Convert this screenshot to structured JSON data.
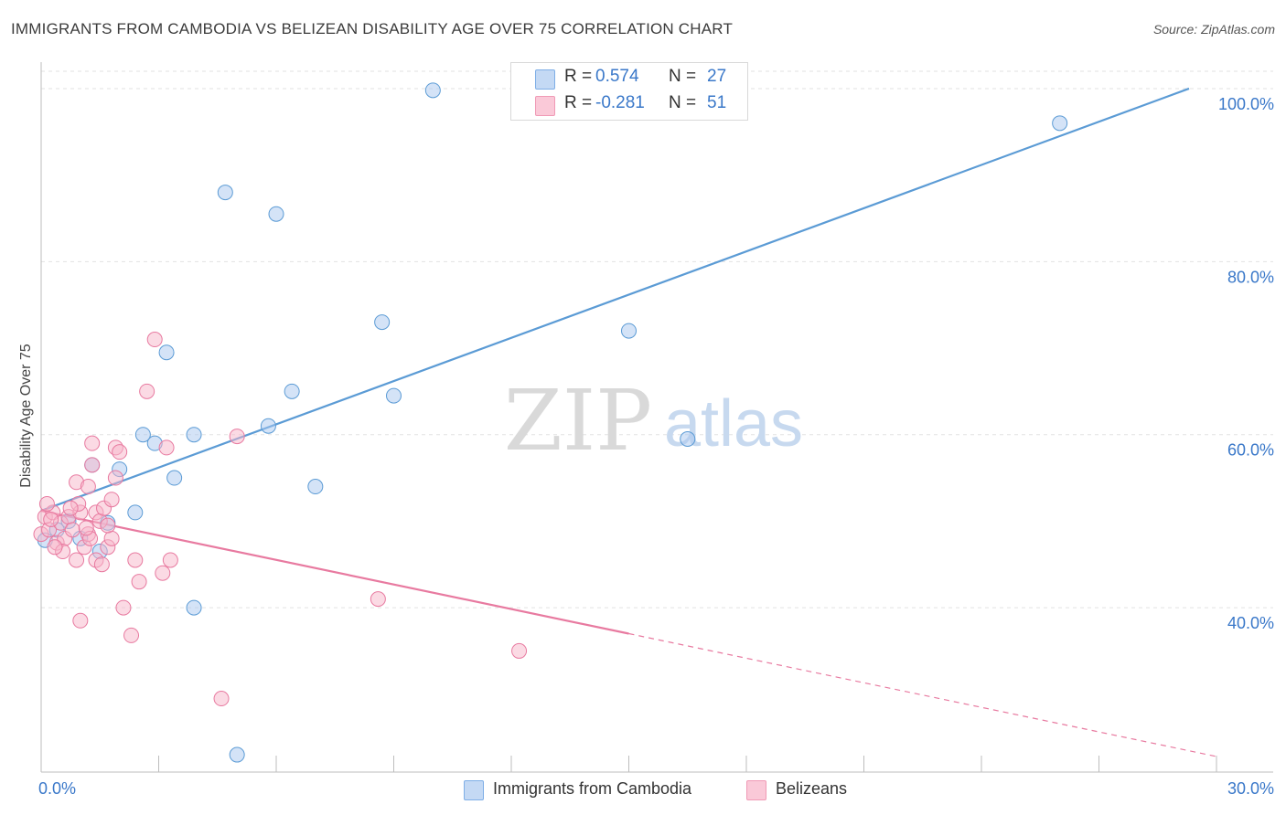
{
  "title": "IMMIGRANTS FROM CAMBODIA VS BELIZEAN DISABILITY AGE OVER 75 CORRELATION CHART",
  "source": "Source: ZipAtlas.com",
  "watermark": {
    "zip": "ZIP",
    "atlas": "atlas"
  },
  "legend_top": [
    {
      "r_label": "R =",
      "r_value": "0.574",
      "n_label": "N =",
      "n_value": "27",
      "color": "#5b9bd5"
    },
    {
      "r_label": "R =",
      "r_value": "-0.281",
      "n_label": "N =",
      "n_value": "51",
      "color": "#e87aa0"
    }
  ],
  "legend_bottom": [
    {
      "label": "Immigrants from Cambodia",
      "color": "#aac8f0"
    },
    {
      "label": "Belizeans",
      "color": "#f7b6ca"
    }
  ],
  "chart_data": {
    "type": "scatter",
    "title": "IMMIGRANTS FROM CAMBODIA VS BELIZEAN DISABILITY AGE OVER 75 CORRELATION CHART",
    "xlabel": "",
    "ylabel": "Disability Age Over 75",
    "xlim": [
      0,
      30
    ],
    "ylim": [
      21,
      102
    ],
    "x_tick_labels": [
      {
        "value": 0,
        "label": "0.0%"
      },
      {
        "value": 30,
        "label": "30.0%"
      }
    ],
    "y_tick_labels": [
      {
        "value": 40,
        "label": "40.0%"
      },
      {
        "value": 60,
        "label": "60.0%"
      },
      {
        "value": 80,
        "label": "80.0%"
      },
      {
        "value": 100,
        "label": "100.0%"
      }
    ],
    "grid": true,
    "legend_placement": "top-center",
    "series": [
      {
        "name": "Immigrants from Cambodia",
        "color": "#5b9bd5",
        "fill": "#aac8f0",
        "points": [
          [
            0.1,
            47.8
          ],
          [
            0.4,
            49.0
          ],
          [
            0.7,
            50.0
          ],
          [
            1.0,
            48.0
          ],
          [
            1.3,
            56.5
          ],
          [
            1.5,
            46.5
          ],
          [
            1.7,
            49.8
          ],
          [
            2.0,
            56.0
          ],
          [
            2.4,
            51.0
          ],
          [
            2.6,
            60.0
          ],
          [
            2.9,
            59.0
          ],
          [
            3.2,
            69.5
          ],
          [
            3.4,
            55.0
          ],
          [
            3.9,
            60.0
          ],
          [
            3.9,
            40.0
          ],
          [
            4.7,
            88.0
          ],
          [
            5.0,
            23.0
          ],
          [
            5.8,
            61.0
          ],
          [
            6.0,
            85.5
          ],
          [
            6.4,
            65.0
          ],
          [
            7.0,
            54.0
          ],
          [
            8.7,
            73.0
          ],
          [
            9.0,
            64.5
          ],
          [
            10.0,
            99.8
          ],
          [
            15.0,
            72.0
          ],
          [
            16.5,
            59.5
          ],
          [
            26.0,
            96.0
          ]
        ],
        "trend": {
          "x0": 0,
          "y0": 51.2,
          "x1": 29.3,
          "y1": 100.0,
          "style": "solid"
        }
      },
      {
        "name": "Belizeans",
        "color": "#e87aa0",
        "fill": "#f7b6ca",
        "points": [
          [
            0.0,
            48.5
          ],
          [
            0.1,
            50.5
          ],
          [
            0.2,
            49.0
          ],
          [
            0.3,
            51.0
          ],
          [
            0.4,
            47.5
          ],
          [
            0.5,
            49.8
          ],
          [
            0.6,
            48.0
          ],
          [
            0.7,
            50.5
          ],
          [
            0.8,
            49.0
          ],
          [
            0.9,
            45.5
          ],
          [
            0.9,
            54.5
          ],
          [
            1.0,
            51.0
          ],
          [
            1.0,
            38.5
          ],
          [
            1.1,
            47.0
          ],
          [
            1.2,
            48.5
          ],
          [
            1.2,
            54.0
          ],
          [
            1.3,
            56.5
          ],
          [
            1.3,
            59.0
          ],
          [
            1.4,
            51.0
          ],
          [
            1.4,
            45.5
          ],
          [
            1.5,
            50.0
          ],
          [
            1.6,
            51.5
          ],
          [
            1.7,
            47.0
          ],
          [
            1.8,
            48.0
          ],
          [
            1.7,
            49.5
          ],
          [
            1.8,
            52.5
          ],
          [
            1.9,
            58.5
          ],
          [
            2.0,
            58.0
          ],
          [
            1.9,
            55.0
          ],
          [
            2.1,
            40.0
          ],
          [
            2.3,
            36.8
          ],
          [
            2.4,
            45.5
          ],
          [
            2.5,
            43.0
          ],
          [
            2.7,
            65.0
          ],
          [
            2.9,
            71.0
          ],
          [
            3.1,
            44.0
          ],
          [
            3.2,
            58.5
          ],
          [
            3.3,
            45.5
          ],
          [
            4.6,
            29.5
          ],
          [
            5.0,
            59.8
          ],
          [
            8.6,
            41.0
          ],
          [
            12.2,
            35.0
          ],
          [
            0.15,
            52.0
          ],
          [
            0.55,
            46.5
          ],
          [
            0.95,
            52.0
          ],
          [
            1.25,
            48.0
          ],
          [
            1.55,
            45.0
          ],
          [
            0.35,
            47.0
          ],
          [
            0.75,
            51.5
          ],
          [
            1.15,
            49.2
          ],
          [
            0.25,
            50.2
          ]
        ],
        "trend": {
          "x0": 0,
          "y0": 51.2,
          "x1": 15.0,
          "y1": 37.0,
          "style": "solid",
          "extension": {
            "x1": 30.0,
            "y1": 22.8,
            "style": "dashed"
          }
        }
      }
    ]
  }
}
